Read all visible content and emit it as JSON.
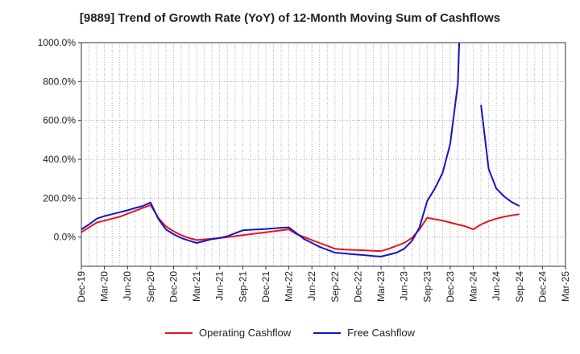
{
  "chart_data": {
    "type": "line",
    "title": "[9889]  Trend of Growth Rate (YoY) of 12-Month Moving Sum of Cashflows",
    "xlabel": "",
    "ylabel": "",
    "ylim": [
      -150,
      1000
    ],
    "yticks": [
      "1000.0%",
      "800.0%",
      "600.0%",
      "400.0%",
      "200.0%",
      "0.0%"
    ],
    "ytick_values": [
      1000,
      800,
      600,
      400,
      200,
      0
    ],
    "xticks": [
      "Dec-19",
      "Mar-20",
      "Jun-20",
      "Sep-20",
      "Dec-20",
      "Mar-21",
      "Jun-21",
      "Sep-21",
      "Dec-21",
      "Mar-22",
      "Jun-22",
      "Sep-22",
      "Dec-22",
      "Mar-23",
      "Jun-23",
      "Sep-23",
      "Dec-23",
      "Mar-24",
      "Jun-24",
      "Sep-24",
      "Dec-24",
      "Mar-25"
    ],
    "x": [
      "Dec-19",
      "Jan-20",
      "Feb-20",
      "Mar-20",
      "Apr-20",
      "May-20",
      "Jun-20",
      "Jul-20",
      "Aug-20",
      "Sep-20",
      "Oct-20",
      "Nov-20",
      "Dec-20",
      "Jan-21",
      "Feb-21",
      "Mar-21",
      "Apr-21",
      "May-21",
      "Jun-21",
      "Jul-21",
      "Aug-21",
      "Sep-21",
      "Oct-21",
      "Nov-21",
      "Dec-21",
      "Jan-22",
      "Feb-22",
      "Mar-22",
      "Apr-22",
      "May-22",
      "Jun-22",
      "Jul-22",
      "Aug-22",
      "Sep-22",
      "Oct-22",
      "Nov-22",
      "Dec-22",
      "Jan-23",
      "Feb-23",
      "Mar-23",
      "Apr-23",
      "May-23",
      "Jun-23",
      "Jul-23",
      "Aug-23",
      "Sep-23",
      "Oct-23",
      "Nov-23",
      "Dec-23",
      "Jan-24",
      "Feb-24",
      "Mar-24",
      "Apr-24",
      "May-24",
      "Jun-24",
      "Jul-24",
      "Aug-24",
      "Sep-24"
    ],
    "grid": true,
    "legend_position": "bottom",
    "series": [
      {
        "name": "Operating Cashflow",
        "color": "#e8141c",
        "values": [
          25,
          50,
          75,
          85,
          95,
          105,
          120,
          135,
          150,
          165,
          100,
          55,
          30,
          10,
          -5,
          -15,
          -12,
          -8,
          -5,
          0,
          5,
          10,
          15,
          20,
          25,
          30,
          35,
          40,
          15,
          0,
          -15,
          -30,
          -45,
          -60,
          -63,
          -65,
          -67,
          -68,
          -70,
          -72,
          -60,
          -45,
          -30,
          -5,
          40,
          100,
          92,
          85,
          75,
          65,
          55,
          40,
          65,
          82,
          95,
          105,
          112,
          118
        ]
      },
      {
        "name": "Free Cashflow",
        "color": "#1414c8",
        "values": [
          40,
          65,
          95,
          108,
          118,
          128,
          138,
          150,
          160,
          178,
          95,
          40,
          15,
          -5,
          -18,
          -30,
          -20,
          -10,
          -5,
          5,
          20,
          35,
          38,
          40,
          42,
          45,
          48,
          50,
          20,
          -10,
          -30,
          -50,
          -65,
          -80,
          -83,
          -87,
          -90,
          -93,
          -97,
          -100,
          -90,
          -80,
          -60,
          -20,
          50,
          185,
          250,
          330,
          480,
          790,
          2000,
          null,
          680,
          350,
          250,
          210,
          180,
          160
        ]
      }
    ]
  }
}
